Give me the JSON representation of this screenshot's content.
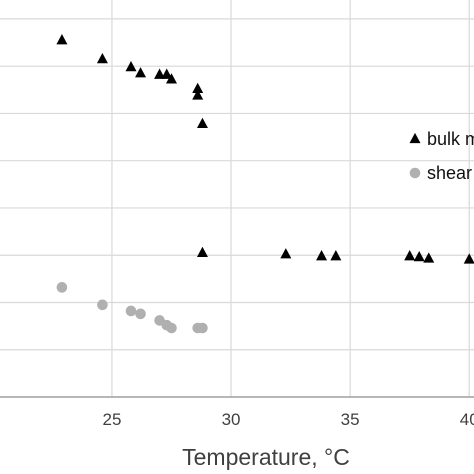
{
  "chart_data": {
    "type": "scatter",
    "xlabel": "Temperature, °C",
    "ylabel": "",
    "title": "",
    "xlim": [
      20.3,
      40.2
    ],
    "ylim": [
      0,
      8.4
    ],
    "x_ticks": [
      "25",
      "30",
      "35",
      "40"
    ],
    "x_tick_values": [
      25,
      30,
      35,
      40
    ],
    "y_gridlines": [
      1,
      2,
      3,
      4,
      5,
      6,
      7,
      8
    ],
    "grid": true,
    "legend_placement": "right (clipped)",
    "series": [
      {
        "name": "bulk m",
        "marker": "triangle",
        "color": "#000000",
        "points": [
          [
            22.9,
            7.55
          ],
          [
            24.6,
            7.15
          ],
          [
            25.8,
            6.98
          ],
          [
            26.2,
            6.85
          ],
          [
            27.0,
            6.82
          ],
          [
            27.3,
            6.82
          ],
          [
            27.5,
            6.72
          ],
          [
            28.6,
            6.52
          ],
          [
            28.6,
            6.38
          ],
          [
            28.8,
            5.78
          ],
          [
            28.8,
            3.05
          ],
          [
            32.3,
            3.02
          ],
          [
            33.8,
            2.98
          ],
          [
            34.4,
            2.98
          ],
          [
            37.5,
            2.98
          ],
          [
            37.9,
            2.96
          ],
          [
            38.3,
            2.93
          ],
          [
            40.0,
            2.91
          ]
        ]
      },
      {
        "name": "shear",
        "marker": "circle",
        "color": "#b0b0b0",
        "points": [
          [
            22.9,
            2.32
          ],
          [
            24.6,
            1.95
          ],
          [
            25.8,
            1.82
          ],
          [
            26.2,
            1.76
          ],
          [
            27.0,
            1.62
          ],
          [
            27.3,
            1.52
          ],
          [
            27.5,
            1.46
          ],
          [
            28.6,
            1.46
          ],
          [
            28.8,
            1.46
          ]
        ]
      }
    ]
  }
}
